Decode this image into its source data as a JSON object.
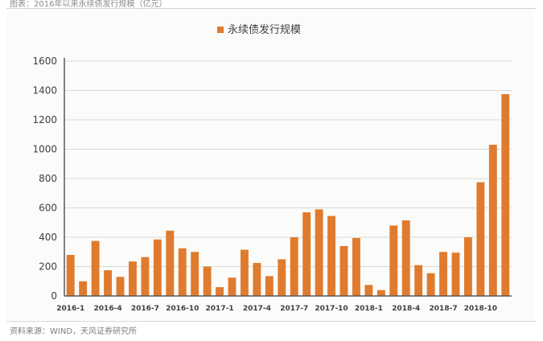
{
  "header": {
    "caption": "图表：2016年以来永续债发行规模（亿元）"
  },
  "footer": {
    "source": "资料来源：WIND，天风证券研究所"
  },
  "chart_data": {
    "type": "bar",
    "title": "",
    "xlabel": "",
    "ylabel": "",
    "ylim": [
      0,
      1600
    ],
    "yticks": [
      0,
      200,
      400,
      600,
      800,
      1000,
      1200,
      1400,
      1600
    ],
    "grid": true,
    "legend": "top-center",
    "bar_color": "#E07B2E",
    "series": [
      {
        "name": "永续债发行规模",
        "values": [
          280,
          100,
          375,
          175,
          130,
          235,
          265,
          385,
          445,
          325,
          300,
          200,
          60,
          125,
          315,
          225,
          135,
          250,
          400,
          570,
          590,
          545,
          340,
          395,
          75,
          40,
          480,
          515,
          210,
          155,
          300,
          295,
          400,
          775,
          1030,
          1375
        ]
      }
    ],
    "categories": [
      "2016-1",
      "2016-2",
      "2016-3",
      "2016-4",
      "2016-5",
      "2016-6",
      "2016-7",
      "2016-8",
      "2016-9",
      "2016-10",
      "2016-11",
      "2016-12",
      "2017-1",
      "2017-2",
      "2017-3",
      "2017-4",
      "2017-5",
      "2017-6",
      "2017-7",
      "2017-8",
      "2017-9",
      "2017-10",
      "2017-11",
      "2017-12",
      "2018-1",
      "2018-2",
      "2018-3",
      "2018-4",
      "2018-5",
      "2018-6",
      "2018-7",
      "2018-8",
      "2018-9",
      "2018-10",
      "2018-11",
      "2018-12"
    ],
    "xticklabels": [
      {
        "index": 0,
        "label": "2016-1"
      },
      {
        "index": 3,
        "label": "2016-4"
      },
      {
        "index": 6,
        "label": "2016-7"
      },
      {
        "index": 9,
        "label": "2016-10"
      },
      {
        "index": 12,
        "label": "2017-1"
      },
      {
        "index": 15,
        "label": "2017-4"
      },
      {
        "index": 18,
        "label": "2017-7"
      },
      {
        "index": 21,
        "label": "2017-10"
      },
      {
        "index": 24,
        "label": "2018-1"
      },
      {
        "index": 27,
        "label": "2018-4"
      },
      {
        "index": 30,
        "label": "2018-7"
      },
      {
        "index": 33,
        "label": "2018-10"
      }
    ]
  }
}
